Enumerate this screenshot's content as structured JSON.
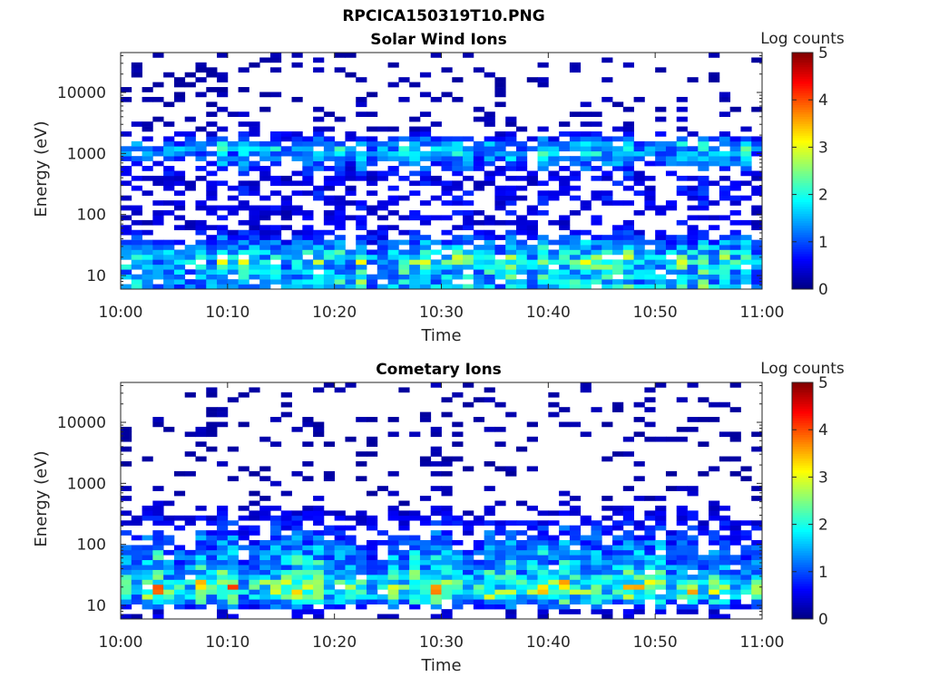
{
  "figure_title": "RPCICA150319T10.PNG",
  "chart_data": [
    {
      "type": "heatmap",
      "title": "Solar Wind Ions",
      "xlabel": "Time",
      "ylabel": "Energy (eV)",
      "y_scale": "log",
      "ylim": [
        6,
        45000
      ],
      "y_ticks": [
        10,
        100,
        1000,
        10000
      ],
      "y_tick_labels": [
        "10",
        "100",
        "1000",
        "10000"
      ],
      "xlim": [
        "10:00",
        "11:00"
      ],
      "x_tick_labels": [
        "10:00",
        "10:10",
        "10:20",
        "10:30",
        "10:40",
        "10:50",
        "11:00"
      ],
      "grid": false,
      "colorbar": {
        "label": "Log counts",
        "range": [
          0,
          5
        ],
        "tick_labels": [
          "0",
          "1",
          "2",
          "3",
          "4",
          "5"
        ],
        "colormap": "jet"
      },
      "summary_profile": {
        "energy_eV": [
          10,
          18,
          30,
          60,
          100,
          200,
          400,
          1200,
          2500,
          10000,
          30000
        ],
        "typical_log_counts": [
          1.6,
          2.0,
          1.3,
          0.5,
          0.5,
          0.6,
          0.5,
          1.6,
          0.3,
          0.2,
          0.2
        ]
      }
    },
    {
      "type": "heatmap",
      "title": "Cometary Ions",
      "xlabel": "Time",
      "ylabel": "Energy (eV)",
      "y_scale": "log",
      "ylim": [
        6,
        45000
      ],
      "y_ticks": [
        10,
        100,
        1000,
        10000
      ],
      "y_tick_labels": [
        "10",
        "100",
        "1000",
        "10000"
      ],
      "xlim": [
        "10:00",
        "11:00"
      ],
      "x_tick_labels": [
        "10:00",
        "10:10",
        "10:20",
        "10:30",
        "10:40",
        "10:50",
        "11:00"
      ],
      "grid": false,
      "colorbar": {
        "label": "Log counts",
        "range": [
          0,
          5
        ],
        "tick_labels": [
          "0",
          "1",
          "2",
          "3",
          "4",
          "5"
        ],
        "colormap": "jet"
      },
      "summary_profile": {
        "energy_eV": [
          8,
          12,
          18,
          25,
          40,
          70,
          120,
          250,
          500,
          1500,
          2500
        ],
        "typical_log_counts": [
          0.4,
          1.6,
          2.6,
          2.2,
          1.5,
          1.3,
          1.0,
          0.6,
          0.3,
          0.2,
          0.2
        ]
      }
    }
  ]
}
